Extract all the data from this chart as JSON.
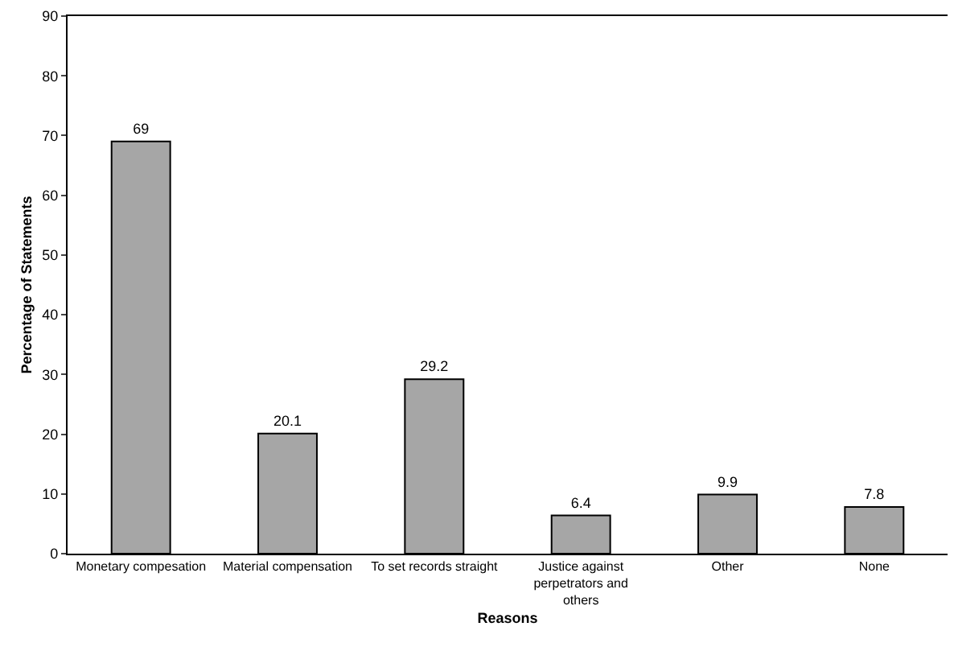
{
  "chart_data": {
    "type": "bar",
    "xlabel": "Reasons",
    "ylabel": "Percentage of Statements",
    "categories": [
      "Monetary compesation",
      "Material compensation",
      "To set records straight",
      "Justice against perpetrators and others",
      "Other",
      "None"
    ],
    "values": [
      69,
      20.1,
      29.2,
      6.4,
      9.9,
      7.8
    ],
    "color": "#a6a6a6",
    "ylim": [
      0,
      90
    ],
    "yticks": [
      0,
      10,
      20,
      30,
      40,
      50,
      60,
      70,
      80,
      90
    ],
    "data_labels": true
  }
}
